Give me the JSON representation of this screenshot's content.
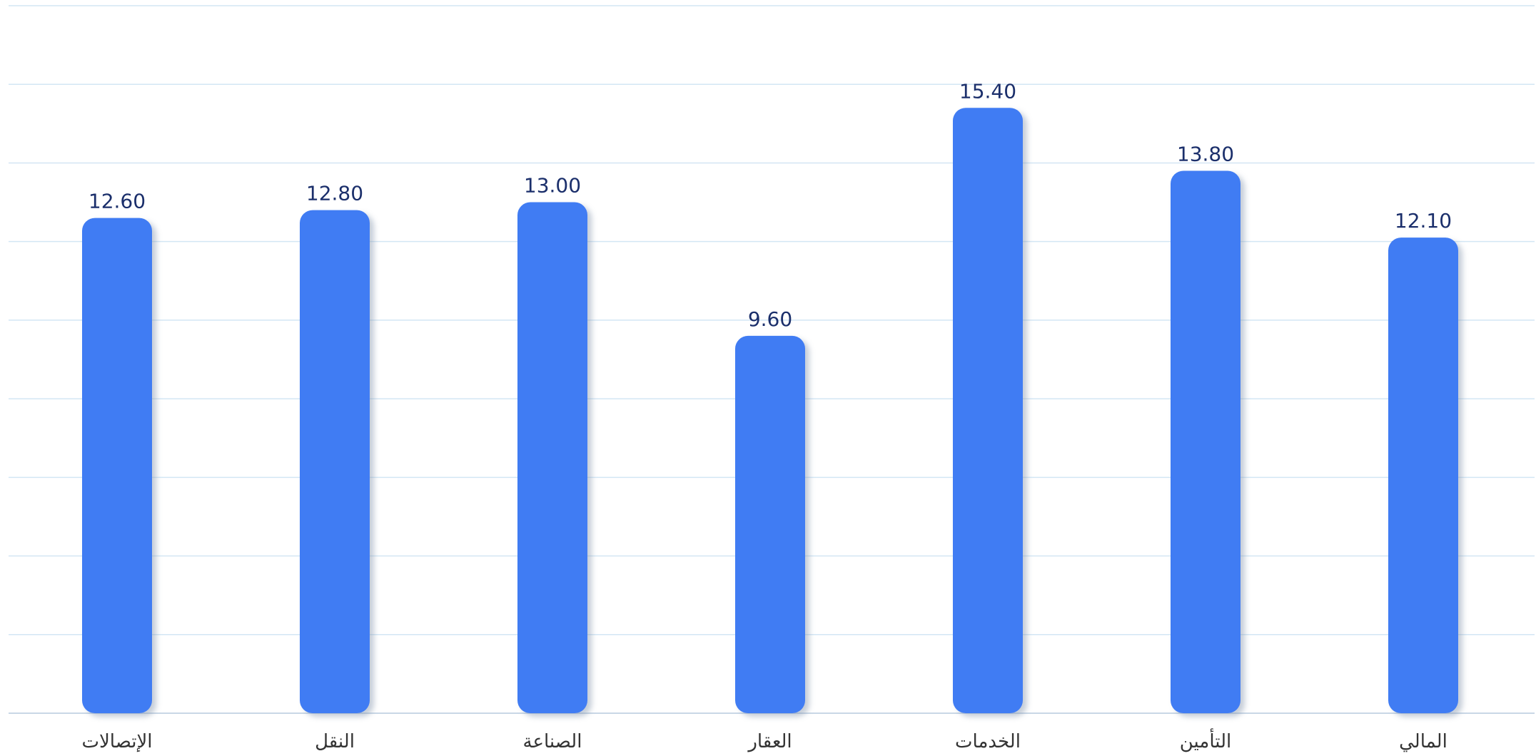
{
  "chart_data": {
    "type": "bar",
    "categories": [
      "الإتصالات",
      "النقل",
      "الصناعة",
      "العقار",
      "الخدمات",
      "التأمين",
      "المالي"
    ],
    "values": [
      12.6,
      12.8,
      13.0,
      9.6,
      15.4,
      13.8,
      12.1
    ],
    "value_labels": [
      "12.60",
      "12.80",
      "13.00",
      "9.60",
      "15.40",
      "13.80",
      "12.10"
    ],
    "ylim": [
      0,
      18
    ],
    "ytick_step": 2,
    "grid": true,
    "legend": "none",
    "colors": {
      "bar": "#3f7bf3",
      "bar_shadow": "#7f8fa8",
      "grid": "#d3e6f4",
      "axis": "#c9d7e6",
      "value_text": "#1b2f6b",
      "category_text": "#333333"
    }
  }
}
